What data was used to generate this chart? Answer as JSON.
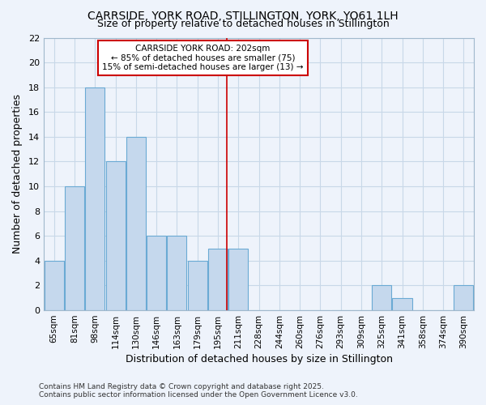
{
  "title": "CARRSIDE, YORK ROAD, STILLINGTON, YORK, YO61 1LH",
  "subtitle": "Size of property relative to detached houses in Stillington",
  "xlabel": "Distribution of detached houses by size in Stillington",
  "ylabel": "Number of detached properties",
  "categories": [
    "65sqm",
    "81sqm",
    "98sqm",
    "114sqm",
    "130sqm",
    "146sqm",
    "163sqm",
    "179sqm",
    "195sqm",
    "211sqm",
    "228sqm",
    "244sqm",
    "260sqm",
    "276sqm",
    "293sqm",
    "309sqm",
    "325sqm",
    "341sqm",
    "358sqm",
    "374sqm",
    "390sqm"
  ],
  "values": [
    4,
    10,
    18,
    12,
    14,
    6,
    6,
    4,
    5,
    5,
    0,
    0,
    0,
    0,
    0,
    0,
    2,
    1,
    0,
    0,
    2
  ],
  "bar_color": "#c5d8ed",
  "bar_edge_color": "#6aaad4",
  "line_color": "#cc0000",
  "annotation_title": "CARRSIDE YORK ROAD: 202sqm",
  "annotation_line1": "← 85% of detached houses are smaller (75)",
  "annotation_line2": "15% of semi-detached houses are larger (13) →",
  "annotation_box_facecolor": "#ffffff",
  "annotation_box_edgecolor": "#cc0000",
  "ylim": [
    0,
    22
  ],
  "yticks": [
    0,
    2,
    4,
    6,
    8,
    10,
    12,
    14,
    16,
    18,
    20,
    22
  ],
  "background_color": "#eef3fb",
  "grid_color": "#c8d8e8",
  "footer_line1": "Contains HM Land Registry data © Crown copyright and database right 2025.",
  "footer_line2": "Contains public sector information licensed under the Open Government Licence v3.0."
}
